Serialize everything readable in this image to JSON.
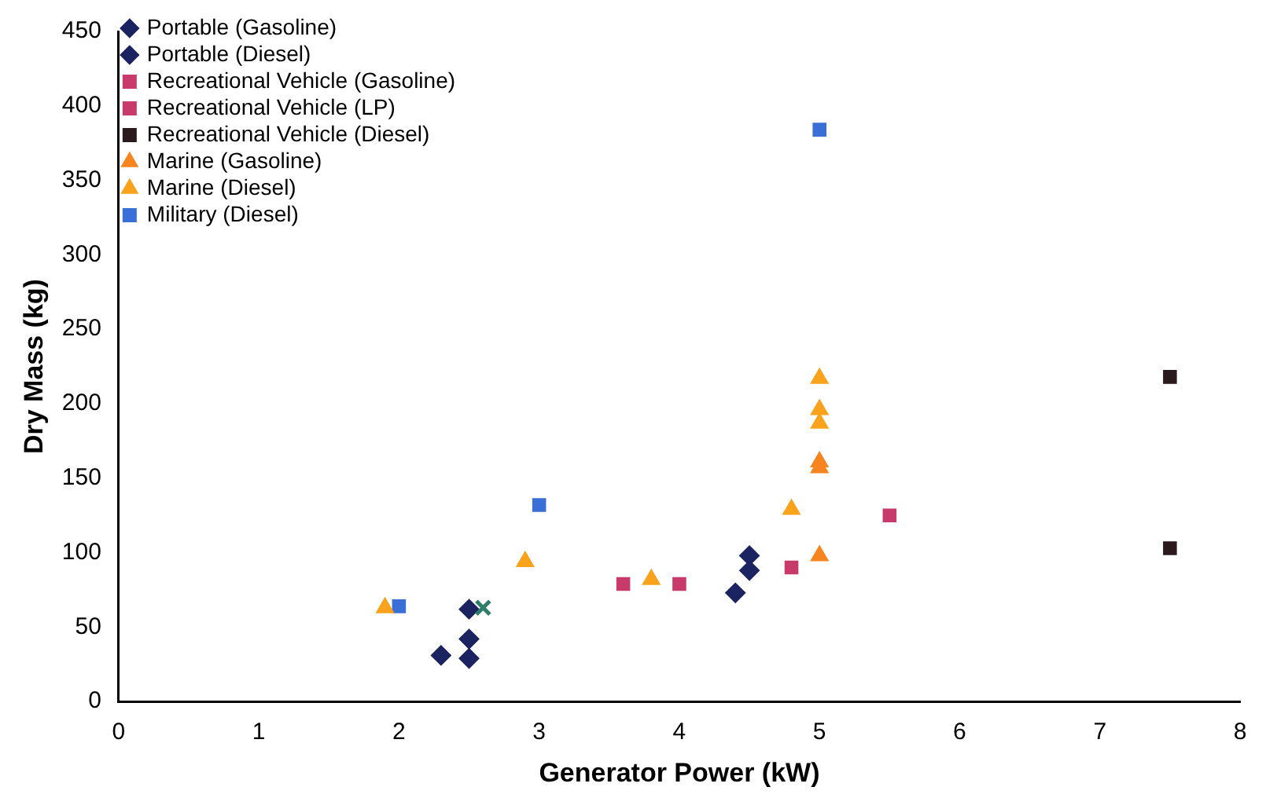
{
  "chart_data": {
    "type": "scatter",
    "xlabel": "Generator Power (kW)",
    "ylabel": "Dry Mass (kg)",
    "xlim": [
      0,
      8
    ],
    "xticks": [
      0,
      1,
      2,
      3,
      4,
      5,
      6,
      7,
      8
    ],
    "ylim": [
      0,
      450
    ],
    "yticks": [
      0,
      50,
      100,
      150,
      200,
      250,
      300,
      350,
      400,
      450
    ],
    "grid": false,
    "legend": "top left",
    "series": [
      {
        "color": "#2e7d6b",
        "marker": "cross",
        "x": [
          2.6
        ],
        "values": [
          63
        ]
      },
      {
        "name": "Portable (Gasoline)",
        "color": "#1c2361",
        "marker": "diamond",
        "x": [
          2.3,
          2.5,
          2.5,
          4.4,
          4.5
        ],
        "values": [
          31,
          42,
          29,
          73,
          88
        ]
      },
      {
        "name": "Portable (Diesel)",
        "color": "#1c2361",
        "marker": "diamond",
        "x": [
          2.5,
          4.5
        ],
        "values": [
          62,
          98
        ]
      },
      {
        "name": "Recreational Vehicle (Gasoline)",
        "color": "#c73a6a",
        "marker": "square",
        "x": [
          4.0,
          4.8,
          5.5
        ],
        "values": [
          79,
          90,
          125
        ]
      },
      {
        "name": "Recreational Vehicle (LP)",
        "color": "#c73a6a",
        "marker": "square",
        "x": [
          3.6
        ],
        "values": [
          79
        ]
      },
      {
        "name": "Recreational Vehicle (Diesel)",
        "color": "#2a1a1e",
        "marker": "square",
        "x": [
          7.5,
          7.5
        ],
        "values": [
          218,
          103
        ]
      },
      {
        "name": "Marine (Gasoline)",
        "color": "#f7851f",
        "marker": "triangle",
        "x": [
          5,
          5,
          5
        ],
        "values": [
          98,
          161,
          157
        ]
      },
      {
        "name": "Marine (Diesel)",
        "color": "#f9a21b",
        "marker": "triangle",
        "x": [
          1.9,
          2.9,
          3.8,
          4.8,
          5,
          5,
          5
        ],
        "values": [
          63,
          94,
          82,
          129,
          217,
          196,
          187
        ]
      },
      {
        "name": "Military (Diesel)",
        "color": "#3a6fd8",
        "marker": "square",
        "x": [
          2,
          3,
          5
        ],
        "values": [
          64,
          132,
          384
        ]
      }
    ]
  }
}
